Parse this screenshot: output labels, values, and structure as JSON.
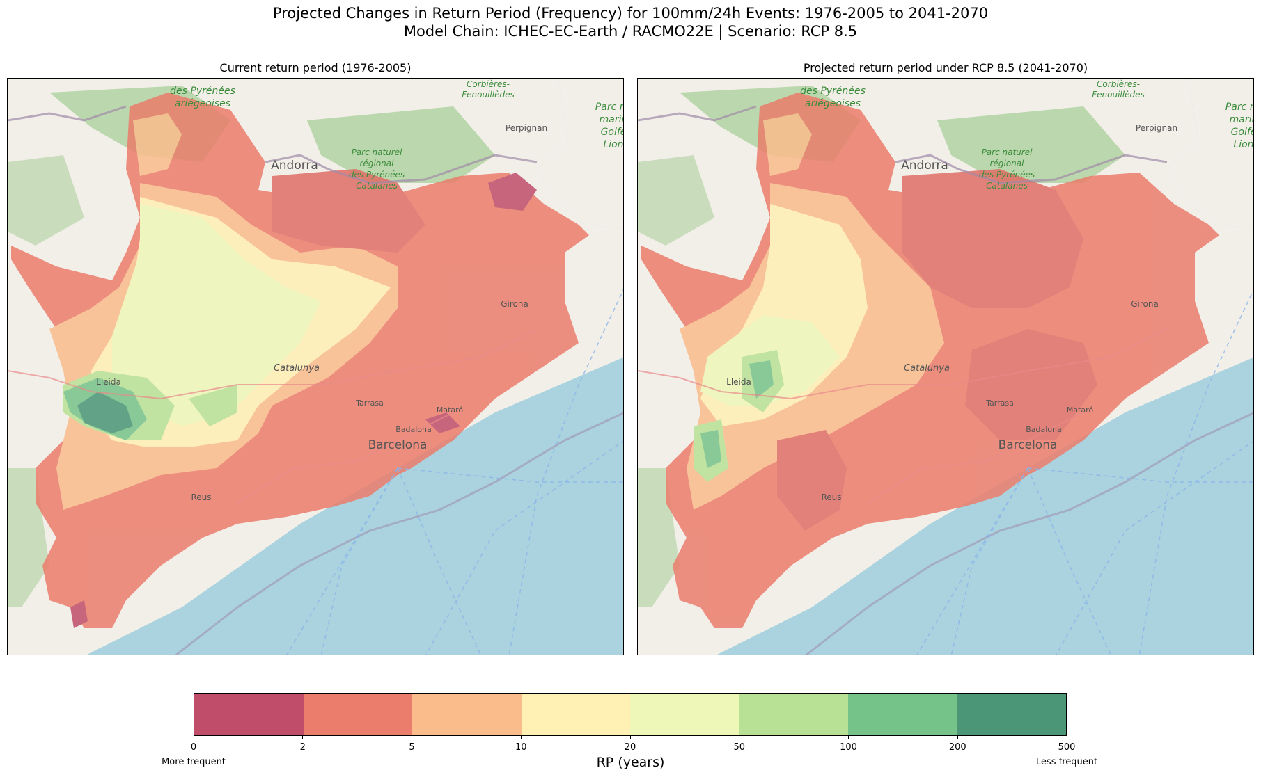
{
  "figure": {
    "title_line1": "Projected Changes in Return Period (Frequency) for 100mm/24h Events: 1976-2005 to 2041-2070",
    "title_line2": "Model Chain: ICHEC-EC-Earth / RACMO22E  | Scenario: RCP 8.5"
  },
  "panels": [
    {
      "title": "Current return period (1976-2005)"
    },
    {
      "title": "Projected return period under RCP 8.5 (2041-2070)"
    }
  ],
  "basemap": {
    "place_labels": [
      "des Pyrénées",
      "ariégeoises",
      "Corbières-",
      "Fenouillèdes",
      "Parc na",
      "marin",
      "Golfe",
      "Lion",
      "Perpignan",
      "Andorra",
      "Parc naturel",
      "régional",
      "des Pyrénées",
      "Catalanes",
      "Girona",
      "Catalunya",
      "Lleida",
      "Tarrasa",
      "Mataró",
      "Badalona",
      "Barcelona",
      "Reus"
    ],
    "colors": {
      "sea": "#aad3df",
      "land": "#f2efe9",
      "forest": "#add19e"
    }
  },
  "chart_data": {
    "type": "heatmap",
    "colorbar": {
      "label": "RP (years)",
      "ticks": [
        "0",
        "2",
        "5",
        "10",
        "20",
        "50",
        "100",
        "200",
        "500"
      ],
      "bins": [
        {
          "range": [
            0,
            2
          ],
          "color": "#c04d69"
        },
        {
          "range": [
            2,
            5
          ],
          "color": "#eb7d6c"
        },
        {
          "range": [
            5,
            10
          ],
          "color": "#fbbc8c"
        },
        {
          "range": [
            10,
            20
          ],
          "color": "#fff0b4"
        },
        {
          "range": [
            20,
            50
          ],
          "color": "#eef7b8"
        },
        {
          "range": [
            50,
            100
          ],
          "color": "#b9e196"
        },
        {
          "range": [
            100,
            200
          ],
          "color": "#76c389"
        },
        {
          "range": [
            200,
            500
          ],
          "color": "#4a9677"
        }
      ],
      "left_annotation": "More frequent",
      "right_annotation": "Less frequent"
    }
  }
}
